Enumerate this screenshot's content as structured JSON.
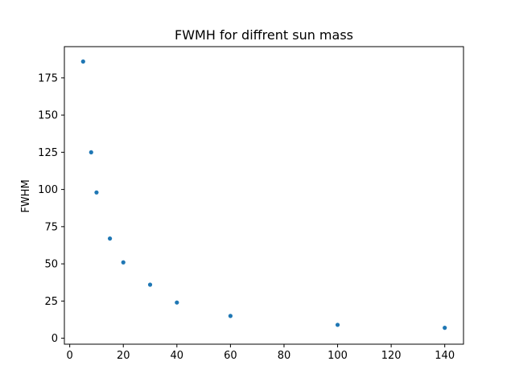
{
  "chart_data": {
    "type": "scatter",
    "title": "FWMH for diffrent sun mass",
    "xlabel": "",
    "ylabel": "FWHM",
    "xlim": [
      -2,
      147
    ],
    "ylim": [
      -4,
      196
    ],
    "xticks": [
      0,
      20,
      40,
      60,
      80,
      100,
      120,
      140
    ],
    "yticks": [
      0,
      25,
      50,
      75,
      100,
      125,
      150,
      175
    ],
    "grid": false,
    "series": [
      {
        "color": "#1f77b4",
        "x": [
          5,
          8,
          10,
          15,
          20,
          30,
          40,
          60,
          100,
          140
        ],
        "y": [
          186,
          125,
          98,
          67,
          51,
          36,
          24,
          15,
          9,
          7
        ]
      }
    ]
  }
}
